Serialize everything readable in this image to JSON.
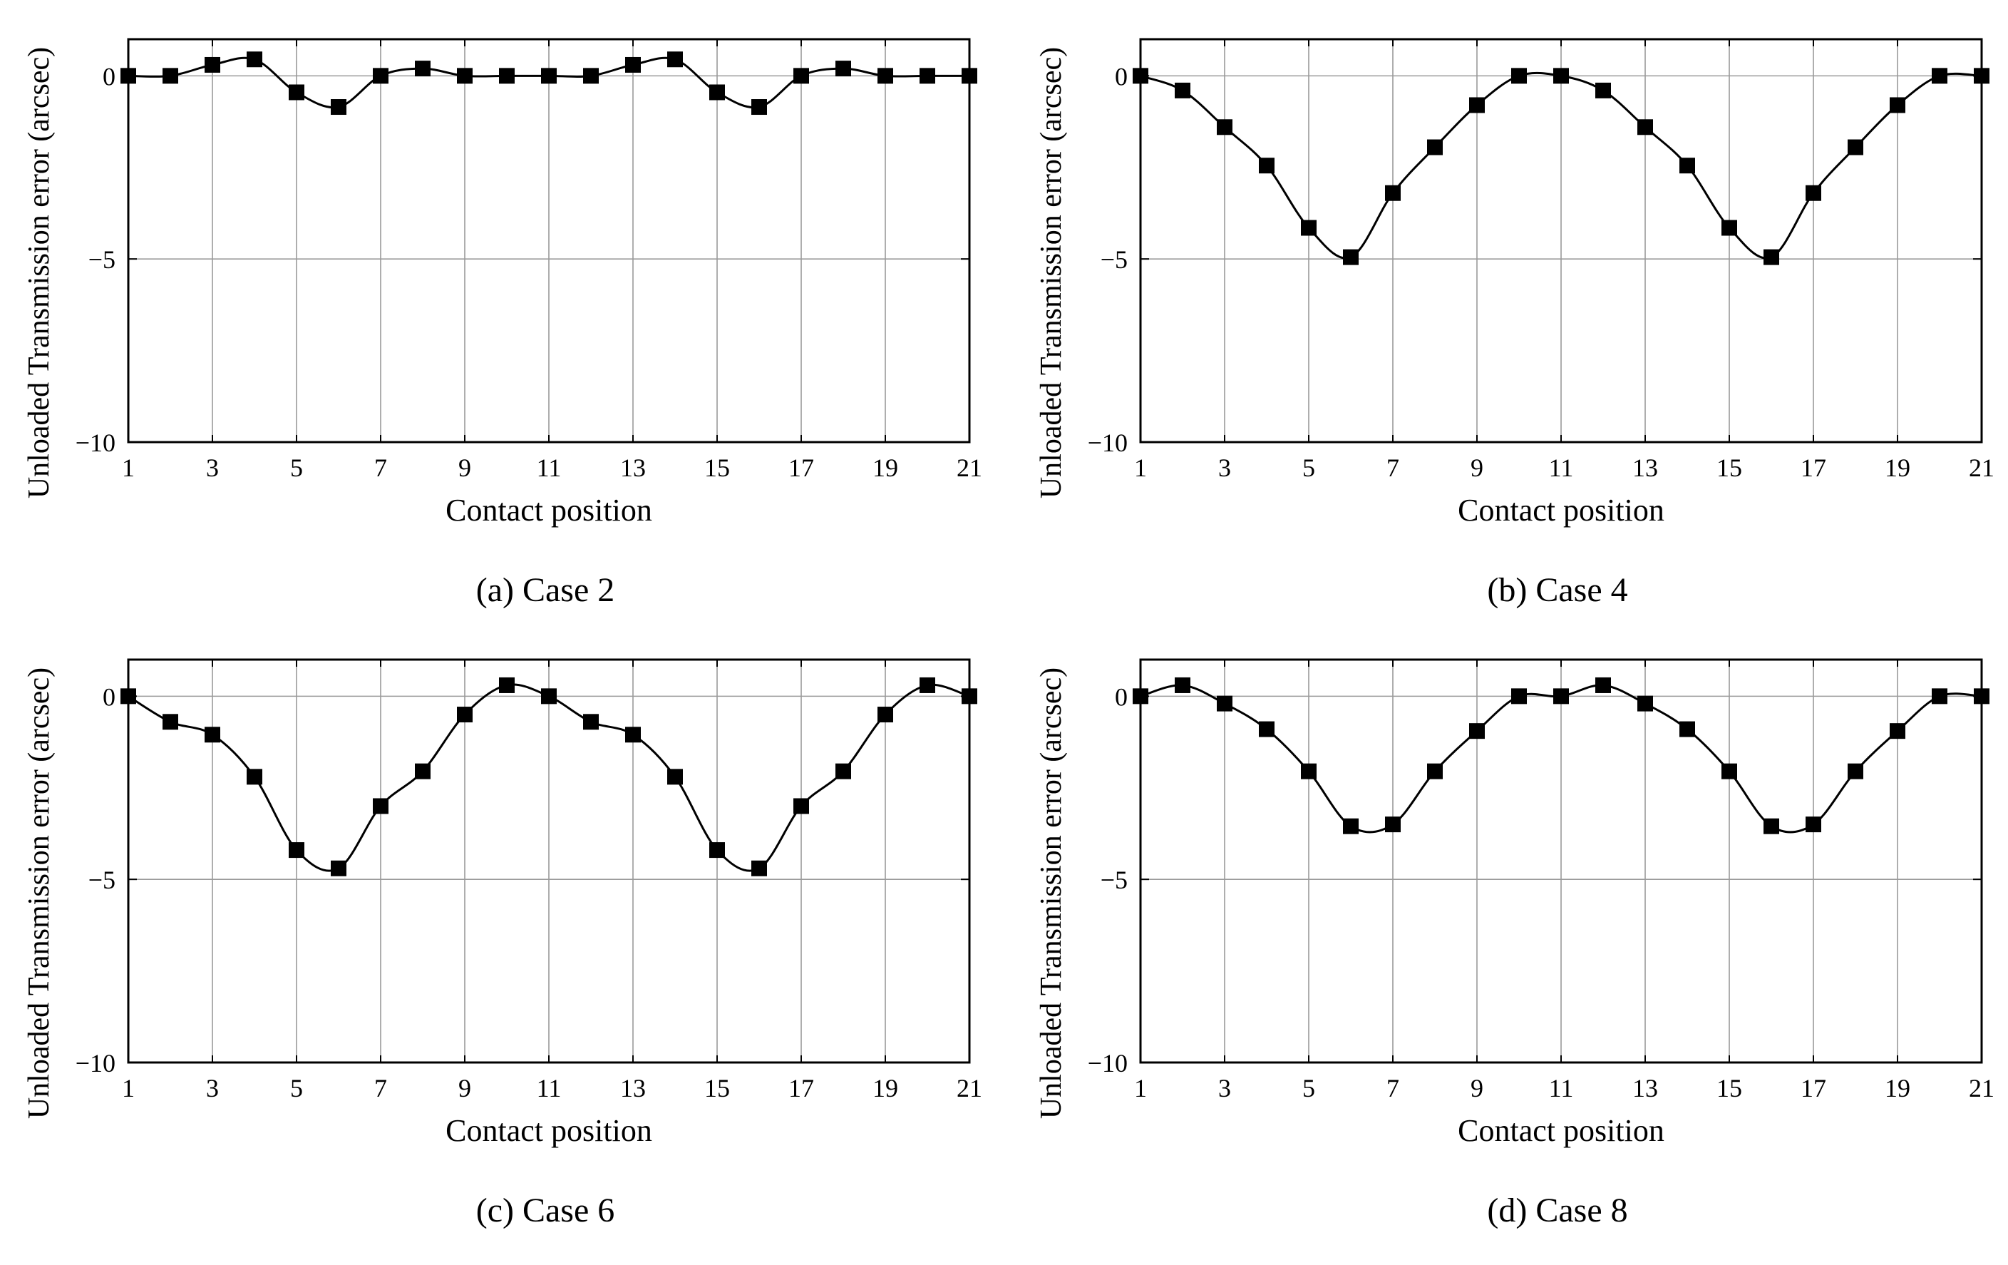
{
  "chart_data": [
    {
      "type": "line",
      "panel_id": "a",
      "caption": "(a) Case 2",
      "xlabel": "Contact position",
      "ylabel": "Unloaded Transmission error (arcsec)",
      "xlim": [
        1,
        21
      ],
      "ylim": [
        -10,
        1
      ],
      "xticks": [
        1,
        3,
        5,
        7,
        9,
        11,
        13,
        15,
        17,
        19,
        21
      ],
      "yticks": [
        0,
        -5,
        -10
      ],
      "grid": true,
      "series": [
        {
          "name": "Case 2",
          "marker": "square",
          "x": [
            1,
            2,
            3,
            4,
            5,
            6,
            7,
            8,
            9,
            10,
            11,
            12,
            13,
            14,
            15,
            16,
            17,
            18,
            19,
            20,
            21
          ],
          "values": [
            0,
            0,
            0.3,
            0.45,
            -0.45,
            -0.85,
            0,
            0.2,
            0,
            0,
            0,
            0,
            0.3,
            0.45,
            -0.45,
            -0.85,
            0,
            0.2,
            0,
            0,
            0
          ]
        }
      ]
    },
    {
      "type": "line",
      "panel_id": "b",
      "caption": "(b) Case 4",
      "xlabel": "Contact position",
      "ylabel": "Unloaded Transmission error (arcsec)",
      "xlim": [
        1,
        21
      ],
      "ylim": [
        -10,
        1
      ],
      "xticks": [
        1,
        3,
        5,
        7,
        9,
        11,
        13,
        15,
        17,
        19,
        21
      ],
      "yticks": [
        0,
        -5,
        -10
      ],
      "grid": true,
      "series": [
        {
          "name": "Case 4",
          "marker": "square",
          "x": [
            1,
            2,
            3,
            4,
            5,
            6,
            7,
            8,
            9,
            10,
            11,
            12,
            13,
            14,
            15,
            16,
            17,
            18,
            19,
            20,
            21
          ],
          "values": [
            0,
            -0.4,
            -1.4,
            -2.45,
            -4.15,
            -4.95,
            -3.2,
            -1.95,
            -0.8,
            0,
            0,
            -0.4,
            -1.4,
            -2.45,
            -4.15,
            -4.95,
            -3.2,
            -1.95,
            -0.8,
            0,
            0
          ]
        }
      ]
    },
    {
      "type": "line",
      "panel_id": "c",
      "caption": "(c) Case 6",
      "xlabel": "Contact position",
      "ylabel": "Unloaded Transmission error (arcsec)",
      "xlim": [
        1,
        21
      ],
      "ylim": [
        -10,
        1
      ],
      "xticks": [
        1,
        3,
        5,
        7,
        9,
        11,
        13,
        15,
        17,
        19,
        21
      ],
      "yticks": [
        0,
        -5,
        -10
      ],
      "grid": true,
      "series": [
        {
          "name": "Case 6",
          "marker": "square",
          "x": [
            1,
            2,
            3,
            4,
            5,
            6,
            7,
            8,
            9,
            10,
            11,
            12,
            13,
            14,
            15,
            16,
            17,
            18,
            19,
            20,
            21
          ],
          "values": [
            0,
            -0.7,
            -1.05,
            -2.2,
            -4.2,
            -4.7,
            -3.0,
            -2.05,
            -0.5,
            0.3,
            0,
            -0.7,
            -1.05,
            -2.2,
            -4.2,
            -4.7,
            -3.0,
            -2.05,
            -0.5,
            0.3,
            0
          ]
        }
      ]
    },
    {
      "type": "line",
      "panel_id": "d",
      "caption": "(d) Case 8",
      "xlabel": "Contact position",
      "ylabel": "Unloaded Transmission error (arcsec)",
      "xlim": [
        1,
        21
      ],
      "ylim": [
        -10,
        1
      ],
      "xticks": [
        1,
        3,
        5,
        7,
        9,
        11,
        13,
        15,
        17,
        19,
        21
      ],
      "yticks": [
        0,
        -5,
        -10
      ],
      "grid": true,
      "series": [
        {
          "name": "Case 8",
          "marker": "square",
          "x": [
            1,
            2,
            3,
            4,
            5,
            6,
            7,
            8,
            9,
            10,
            11,
            12,
            13,
            14,
            15,
            16,
            17,
            18,
            19,
            20,
            21
          ],
          "values": [
            0,
            0.3,
            -0.2,
            -0.9,
            -2.05,
            -3.55,
            -3.5,
            -2.05,
            -0.95,
            0,
            0,
            0.3,
            -0.2,
            -0.9,
            -2.05,
            -3.55,
            -3.5,
            -2.05,
            -0.95,
            0,
            0
          ]
        }
      ]
    }
  ]
}
